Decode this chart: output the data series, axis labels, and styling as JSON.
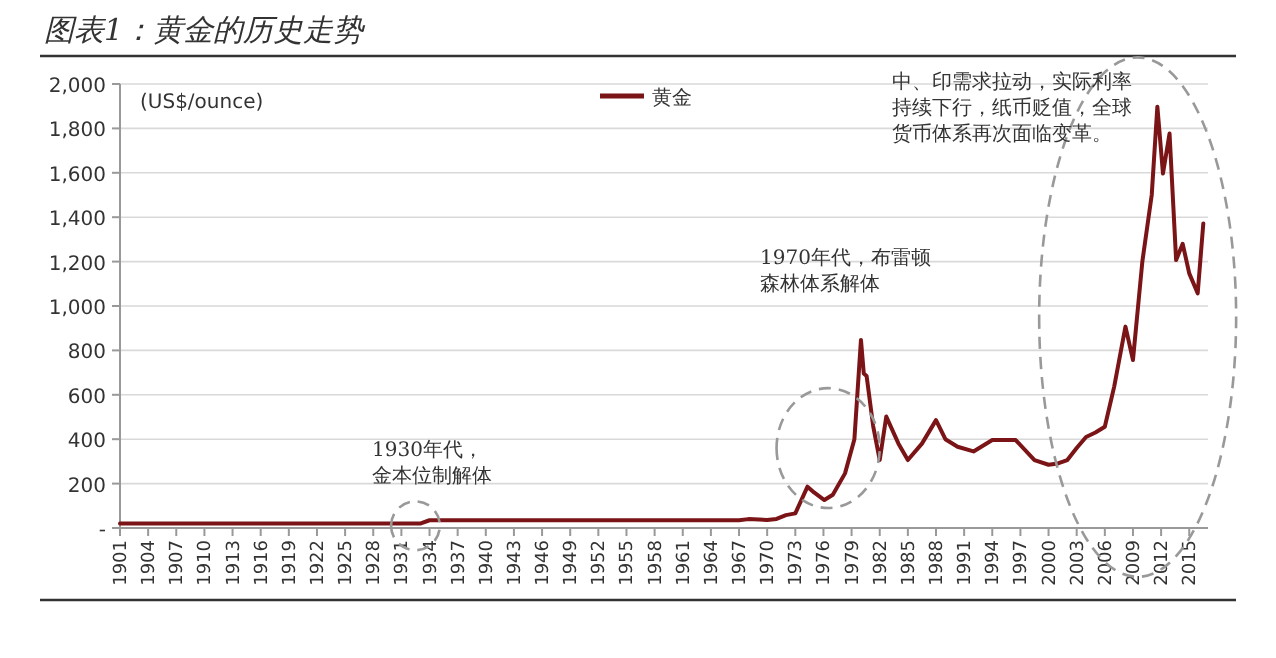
{
  "chart_data": {
    "type": "line",
    "title": "图表1：黄金的历史走势",
    "ylabel": "(US$/ounce)",
    "annotations": [
      "1930年代，金本位制解体",
      "1970年代，布雷顿森林体系解体",
      "中、印需求拉动，实际利率持续下行，纸币贬值，全球货币体系再次面临变革。"
    ],
    "series": [
      {
        "name": "黄金",
        "color": "#7b1416",
        "x": [
          1901,
          1933,
          1934,
          1967,
          1968,
          1970,
          1971,
          1972,
          1973,
          1974.3,
          1975,
          1976.1,
          1977,
          1978.3,
          1979.3,
          1980,
          1980.3,
          1980.6,
          1981.3,
          1982,
          1982.7,
          1984,
          1985,
          1986.5,
          1988,
          1989,
          1990.3,
          1992,
          1994,
          1996.5,
          1998.5,
          2000,
          2001,
          2002,
          2003,
          2004,
          2005,
          2006,
          2007,
          2008.2,
          2009,
          2010,
          2011,
          2011.6,
          2012.2,
          2012.9,
          2013.6,
          2014.3,
          2015,
          2015.9,
          2016.5
        ],
        "values": [
          20,
          20,
          35,
          35,
          40,
          36,
          41,
          58,
          66,
          186,
          160,
          126,
          150,
          246,
          400,
          847,
          696,
          685,
          459,
          306,
          502,
          380,
          306,
          380,
          486,
          400,
          366,
          345,
          396,
          396,
          306,
          285,
          291,
          306,
          360,
          410,
          430,
          456,
          637,
          907,
          757,
          1200,
          1500,
          1898,
          1597,
          1777,
          1207,
          1280,
          1147,
          1057,
          1372
        ]
      }
    ],
    "xlim": [
      1901,
      2017
    ],
    "ylim": [
      0,
      2000
    ],
    "xticks": [
      1901,
      1904,
      1907,
      1910,
      1913,
      1916,
      1919,
      1922,
      1925,
      1928,
      1931,
      1934,
      1937,
      1940,
      1943,
      1946,
      1949,
      1952,
      1955,
      1958,
      1961,
      1964,
      1967,
      1970,
      1973,
      1976,
      1979,
      1982,
      1985,
      1988,
      1991,
      1994,
      1997,
      2000,
      2003,
      2006,
      2009,
      2012,
      2015
    ],
    "yticks": [
      {
        "value": 0,
        "label": "-"
      },
      {
        "value": 200,
        "label": "200"
      },
      {
        "value": 400,
        "label": "400"
      },
      {
        "value": 600,
        "label": "600"
      },
      {
        "value": 800,
        "label": "800"
      },
      {
        "value": 1000,
        "label": "1,000"
      },
      {
        "value": 1200,
        "label": "1,200"
      },
      {
        "value": 1400,
        "label": "1,400"
      },
      {
        "value": 1600,
        "label": "1,600"
      },
      {
        "value": 1800,
        "label": "1,800"
      },
      {
        "value": 2000,
        "label": "2,000"
      }
    ],
    "grid": "y",
    "legend": "top",
    "marker": "none",
    "line_style": "solid"
  }
}
